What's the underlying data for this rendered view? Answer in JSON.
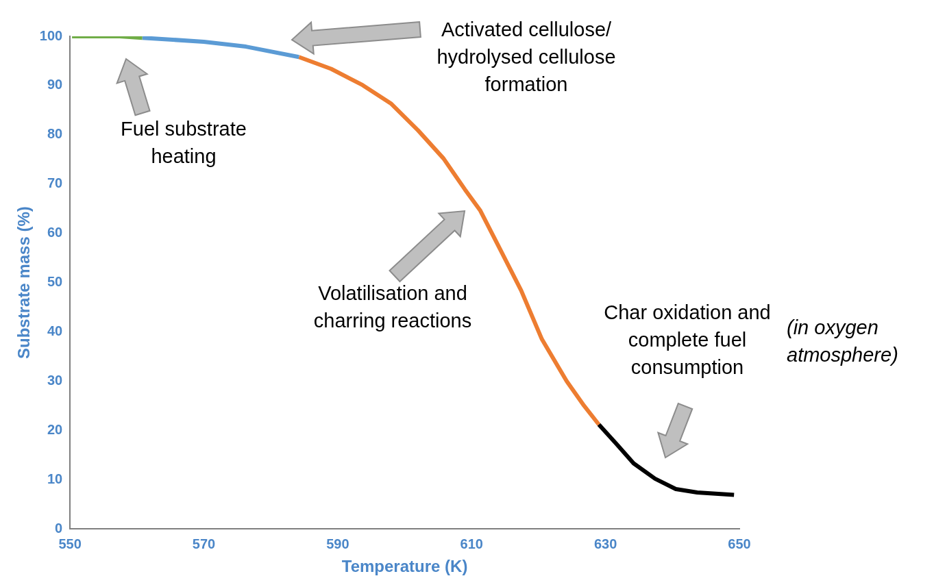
{
  "chart_data": {
    "type": "line",
    "xlabel": "Temperature (K)",
    "ylabel": "Substrate mass (%)",
    "xlim": [
      550,
      650
    ],
    "xticks": [
      550,
      570,
      590,
      610,
      630,
      650
    ],
    "ylim": [
      0,
      100
    ],
    "yticks": [
      0,
      10,
      20,
      30,
      40,
      50,
      60,
      70,
      80,
      90,
      100
    ],
    "grid": false,
    "legend": false,
    "marker": "none",
    "line_style": "solid",
    "series": [
      {
        "color": "#70ad47",
        "x": [
          550.3,
          557.4,
          560.8
        ],
        "values": [
          100,
          100,
          99.7
        ]
      },
      {
        "color": "#5b9bd5",
        "x": [
          560.8,
          570,
          576.3,
          584.2
        ],
        "values": [
          99.7,
          98.9,
          97.9,
          95.8
        ]
      },
      {
        "color": "#ed7d31",
        "x": [
          584.2,
          589,
          593.7,
          598,
          602,
          605.8,
          609,
          611.3,
          614.2,
          617.4,
          620.5,
          624.2,
          626.8,
          629
        ],
        "values": [
          95.8,
          93.4,
          90.1,
          86.3,
          80.9,
          75.2,
          68.9,
          64.6,
          56.9,
          48.4,
          38.5,
          30,
          25,
          21.2
        ]
      },
      {
        "color": "#000000",
        "x": [
          629,
          631.6,
          634.2,
          637.4,
          640.5,
          643.7,
          649.2
        ],
        "values": [
          21.2,
          17.3,
          13.3,
          10.2,
          8.1,
          7.4,
          6.9
        ]
      }
    ],
    "annotations": [
      "Fuel substrate heating",
      "Activated cellulose/ hydrolysed cellulose formation",
      "Volatilisation and charring reactions",
      "Char oxidation and complete fuel consumption",
      "(in oxygen atmosphere)"
    ]
  }
}
